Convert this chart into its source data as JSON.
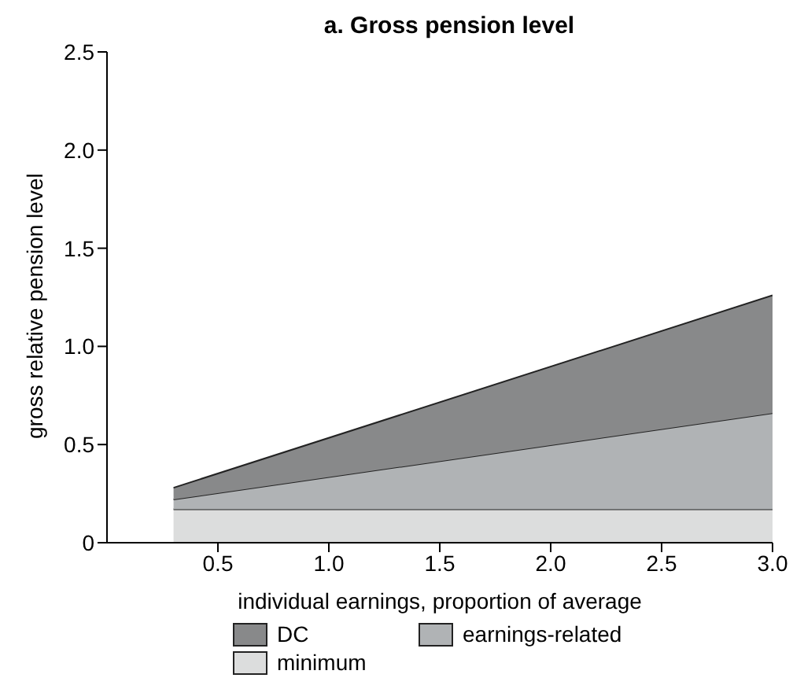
{
  "chart_data": {
    "type": "area",
    "stacked": true,
    "title": "a. Gross pension level",
    "xlabel": "individual earnings, proportion of average",
    "ylabel": "gross relative pension level",
    "x": [
      0.3,
      3.0
    ],
    "series": [
      {
        "name": "minimum",
        "color": "#dcdddd",
        "values": [
          0.17,
          0.17
        ]
      },
      {
        "name": "earnings-related",
        "color": "#b0b3b5",
        "values": [
          0.05,
          0.49
        ]
      },
      {
        "name": "DC",
        "color": "#88898a",
        "values": [
          0.06,
          0.6
        ]
      }
    ],
    "xlim": [
      0,
      3
    ],
    "xticks": [
      {
        "value": 0.5,
        "label": "0.5"
      },
      {
        "value": 1,
        "label": "1.0"
      },
      {
        "value": 1.5,
        "label": "1.5"
      },
      {
        "value": 2,
        "label": "2.0"
      },
      {
        "value": 2.5,
        "label": "2.5"
      },
      {
        "value": 3,
        "label": "3.0"
      }
    ],
    "ylim": [
      0,
      2.5
    ],
    "yticks": [
      0,
      {
        "value": 0.5,
        "label": "0.5"
      },
      {
        "value": 1,
        "label": "1.0"
      },
      {
        "value": 1.5,
        "label": "1.5"
      },
      {
        "value": 2,
        "label": "2.0"
      },
      {
        "value": 2.5,
        "label": "2.5"
      }
    ],
    "grid": false,
    "legend": "bottom"
  }
}
